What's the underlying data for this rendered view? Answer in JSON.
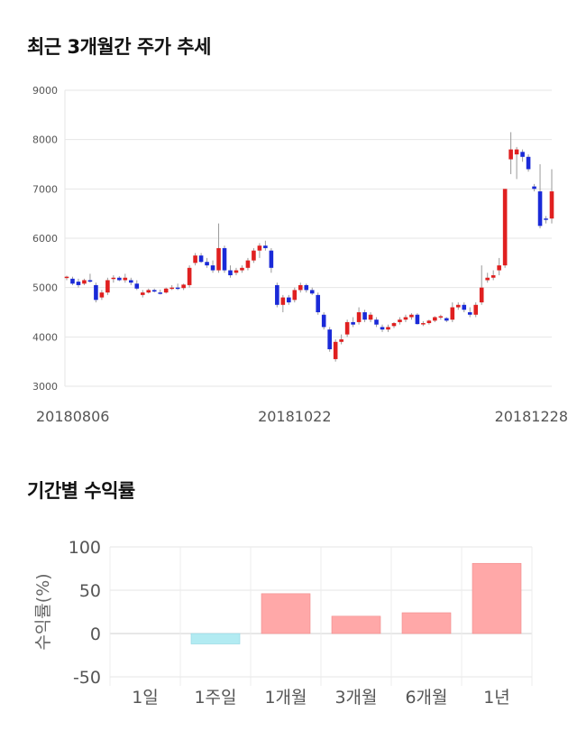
{
  "titles": {
    "price_trend": "최근 3개월간 주가 추세",
    "period_return": "기간별 수익률"
  },
  "chart_data": [
    {
      "type": "candlestick",
      "y_ticks": [
        "9000",
        "8000",
        "7000",
        "6000",
        "5000",
        "4000",
        "3000"
      ],
      "ylim": [
        3000,
        9000
      ],
      "x_tick_labels": [
        "20180806",
        "20181022",
        "20181228"
      ],
      "x_tick_index": [
        0,
        39,
        79
      ],
      "grid": true,
      "up_color": "#e02020",
      "down_color": "#1a2ad8",
      "candles": [
        [
          5200,
          5240,
          5150,
          5220
        ],
        [
          5180,
          5220,
          5050,
          5080
        ],
        [
          5120,
          5180,
          5000,
          5050
        ],
        [
          5080,
          5180,
          5050,
          5150
        ],
        [
          5150,
          5280,
          5100,
          5120
        ],
        [
          5050,
          5100,
          4700,
          4750
        ],
        [
          4800,
          4950,
          4750,
          4900
        ],
        [
          4900,
          5200,
          4850,
          5150
        ],
        [
          5180,
          5250,
          5100,
          5200
        ],
        [
          5200,
          5230,
          5130,
          5150
        ],
        [
          5150,
          5280,
          5100,
          5200
        ],
        [
          5150,
          5200,
          5050,
          5100
        ],
        [
          5080,
          5150,
          4950,
          4980
        ],
        [
          4850,
          4950,
          4800,
          4900
        ],
        [
          4900,
          4980,
          4880,
          4950
        ],
        [
          4950,
          4980,
          4900,
          4920
        ],
        [
          4900,
          4960,
          4860,
          4880
        ],
        [
          4900,
          5000,
          4880,
          4980
        ],
        [
          4980,
          5050,
          4950,
          5000
        ],
        [
          5000,
          5080,
          4950,
          4990
        ],
        [
          4990,
          5080,
          4950,
          5060
        ],
        [
          5050,
          5450,
          5000,
          5400
        ],
        [
          5500,
          5700,
          5450,
          5650
        ],
        [
          5650,
          5700,
          5500,
          5520
        ],
        [
          5520,
          5600,
          5400,
          5450
        ],
        [
          5450,
          5550,
          5300,
          5350
        ],
        [
          5350,
          6300,
          5300,
          5800
        ],
        [
          5800,
          5850,
          5300,
          5350
        ],
        [
          5350,
          5450,
          5200,
          5250
        ],
        [
          5300,
          5400,
          5250,
          5350
        ],
        [
          5350,
          5450,
          5300,
          5400
        ],
        [
          5400,
          5600,
          5350,
          5550
        ],
        [
          5550,
          5800,
          5500,
          5750
        ],
        [
          5750,
          5900,
          5600,
          5850
        ],
        [
          5850,
          5950,
          5750,
          5800
        ],
        [
          5750,
          5800,
          5300,
          5400
        ],
        [
          5050,
          5100,
          4600,
          4650
        ],
        [
          4650,
          4850,
          4500,
          4800
        ],
        [
          4800,
          4850,
          4650,
          4700
        ],
        [
          4750,
          5000,
          4700,
          4950
        ],
        [
          4950,
          5100,
          4900,
          5050
        ],
        [
          5050,
          5080,
          4900,
          4950
        ],
        [
          4950,
          5000,
          4850,
          4880
        ],
        [
          4850,
          4900,
          4450,
          4500
        ],
        [
          4450,
          4500,
          4150,
          4200
        ],
        [
          4150,
          4200,
          3700,
          3750
        ],
        [
          3550,
          3950,
          3500,
          3900
        ],
        [
          3900,
          4050,
          3850,
          3950
        ],
        [
          4050,
          4350,
          4000,
          4300
        ],
        [
          4300,
          4400,
          4200,
          4250
        ],
        [
          4300,
          4600,
          4250,
          4500
        ],
        [
          4500,
          4550,
          4300,
          4350
        ],
        [
          4350,
          4500,
          4300,
          4450
        ],
        [
          4350,
          4400,
          4200,
          4250
        ],
        [
          4200,
          4250,
          4100,
          4150
        ],
        [
          4150,
          4250,
          4100,
          4200
        ],
        [
          4220,
          4300,
          4180,
          4280
        ],
        [
          4300,
          4400,
          4250,
          4350
        ],
        [
          4350,
          4450,
          4300,
          4400
        ],
        [
          4400,
          4480,
          4350,
          4450
        ],
        [
          4450,
          4480,
          4250,
          4260
        ],
        [
          4260,
          4320,
          4220,
          4280
        ],
        [
          4280,
          4350,
          4250,
          4330
        ],
        [
          4330,
          4420,
          4300,
          4400
        ],
        [
          4400,
          4450,
          4350,
          4420
        ],
        [
          4380,
          4400,
          4300,
          4330
        ],
        [
          4350,
          4700,
          4300,
          4600
        ],
        [
          4600,
          4700,
          4550,
          4650
        ],
        [
          4650,
          4700,
          4500,
          4550
        ],
        [
          4500,
          4600,
          4400,
          4450
        ],
        [
          4450,
          4700,
          4400,
          4650
        ],
        [
          4700,
          5450,
          4650,
          5000
        ],
        [
          5150,
          5300,
          5100,
          5200
        ],
        [
          5200,
          5350,
          5150,
          5250
        ],
        [
          5350,
          5600,
          5250,
          5450
        ],
        [
          5450,
          7000,
          5400,
          7000
        ],
        [
          7600,
          8150,
          7300,
          7800
        ],
        [
          7700,
          7850,
          7200,
          7800
        ],
        [
          7750,
          7800,
          7550,
          7650
        ],
        [
          7650,
          7700,
          7350,
          7400
        ],
        [
          7050,
          7100,
          6950,
          7000
        ],
        [
          6950,
          7500,
          6200,
          6250
        ],
        [
          6400,
          6450,
          6300,
          6380
        ],
        [
          6400,
          7400,
          6300,
          6950
        ]
      ]
    },
    {
      "type": "bar",
      "categories": [
        "1일",
        "1주일",
        "1개월",
        "3개월",
        "6개월",
        "1년"
      ],
      "values": [
        0,
        -12,
        46,
        20,
        24,
        81
      ],
      "ylabel": "수익률(%)",
      "ylim": [
        -50,
        100
      ],
      "y_ticks": [
        "100",
        "50",
        "0",
        "-50"
      ],
      "positive_color": "#ffa8a8",
      "negative_color": "#b2ebf2",
      "grid": true
    }
  ]
}
